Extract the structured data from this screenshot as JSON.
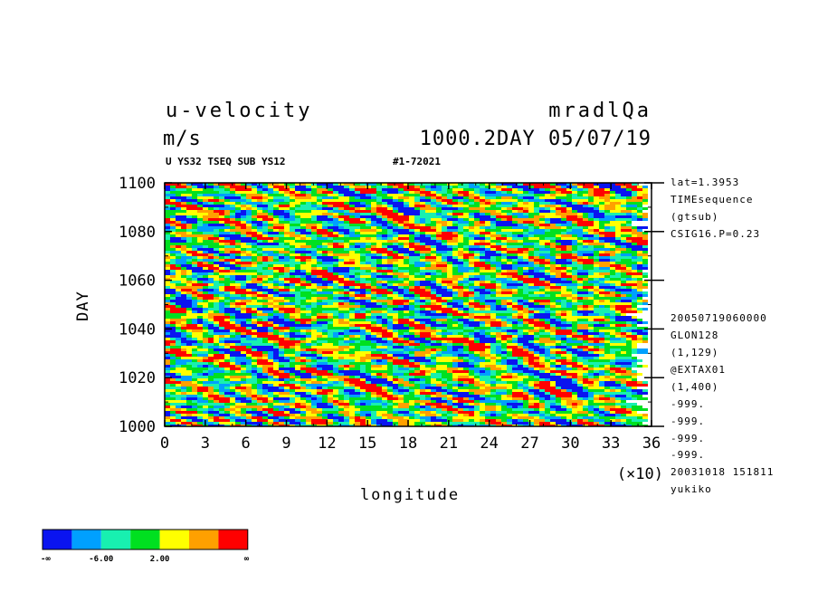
{
  "header": {
    "variable": "u-velocity",
    "units": "m/s",
    "model": "mradlQa",
    "time": "1000.2DAY 05/07/19",
    "subtitle_left": "U YS32 TSEQ SUB YS12",
    "subtitle_right": "#1-72021"
  },
  "side_info": [
    "lat=1.3953",
    "TIMEsequence",
    "(gtsub)",
    "CSIG16.P=0.23",
    "20050719060000",
    "GLON128",
    "(1,129)",
    "@EXTAX01",
    "(1,400)",
    "-999.",
    "-999.",
    "-999.",
    "-999.",
    "20031018 151811",
    "yukiko"
  ],
  "chart_data": {
    "type": "heatmap",
    "xlabel": "longitude",
    "ylabel": "DAY",
    "x_multiplier": "(×10)",
    "xlim": [
      0,
      36
    ],
    "ylim": [
      1000,
      1100
    ],
    "x_ticks": [
      "0",
      "3",
      "6",
      "9",
      "12",
      "15",
      "18",
      "21",
      "24",
      "27",
      "30",
      "33",
      "36"
    ],
    "y_ticks": [
      "1000",
      "1020",
      "1040",
      "1060",
      "1080",
      "1100"
    ],
    "color_levels": [
      "#0a14f0",
      "#00a0ff",
      "#18f0b0",
      "#00e020",
      "#ffff00",
      "#ffa000",
      "#ff0000"
    ],
    "legend_labels": [
      "-∞",
      "-6.00",
      "2.00",
      "∞"
    ]
  }
}
